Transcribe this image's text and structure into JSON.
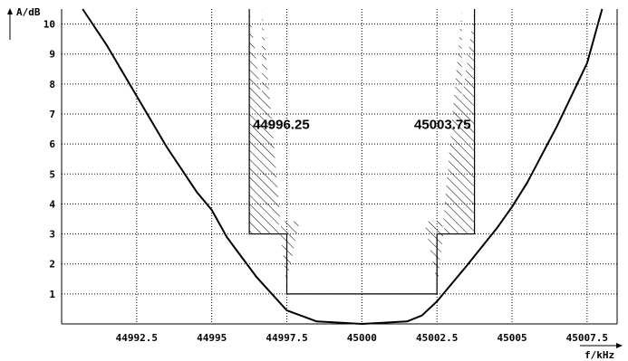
{
  "chart_data": {
    "type": "line",
    "title": "",
    "xlabel": "f/kHz",
    "ylabel": "A/dB",
    "xlim": [
      44990,
      45008.5
    ],
    "ylim": [
      0,
      10.5
    ],
    "xticks": [
      44992.5,
      44995,
      44997.5,
      45000,
      45002.5,
      45005,
      45007.5
    ],
    "xtick_labels": [
      "44992.5",
      "44995",
      "44997.5",
      "45000",
      "45002.5",
      "45005",
      "45007.5"
    ],
    "yticks": [
      1,
      2,
      3,
      4,
      5,
      6,
      7,
      8,
      9,
      10
    ],
    "ytick_labels": [
      "1",
      "2",
      "3",
      "4",
      "5",
      "6",
      "7",
      "8",
      "9",
      "10"
    ],
    "grid": true,
    "series": [
      {
        "x": [
          44990.7,
          44991.5,
          44992.5,
          44993.5,
          44994.5,
          44995,
          44995.5,
          44996.5,
          44997.5,
          44998.5,
          45000,
          45001.5,
          45002.0,
          45002.5,
          45003.5,
          45004.5,
          45005,
          45005.5,
          45006.5,
          45007.5,
          45008.0
        ],
        "values": [
          10.5,
          9.3,
          7.6,
          5.9,
          4.4,
          3.8,
          2.9,
          1.55,
          0.45,
          0.08,
          0.0,
          0.08,
          0.28,
          0.75,
          1.95,
          3.2,
          3.9,
          4.7,
          6.6,
          8.7,
          10.5
        ]
      }
    ],
    "tolerance_mask": {
      "x": [
        44996.25,
        44996.25,
        44997.5,
        44997.5,
        45002.5,
        45002.5,
        45003.75,
        45003.75
      ],
      "values": [
        10.5,
        3,
        3,
        1,
        1,
        3,
        3,
        10.5
      ]
    },
    "annotations": [
      {
        "text": "44996.25",
        "x": 44996.25,
        "y": 6.5
      },
      {
        "text": "45003.75",
        "x": 45003.75,
        "y": 6.5
      }
    ]
  }
}
